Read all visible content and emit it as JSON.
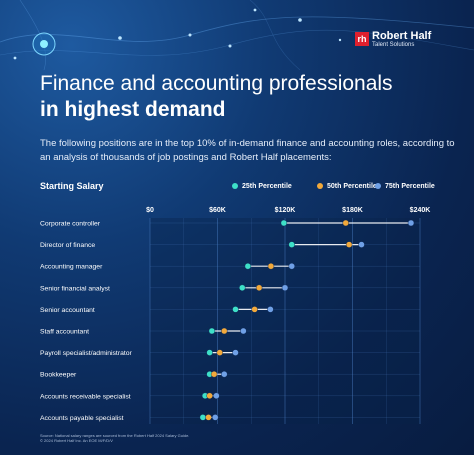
{
  "brand": {
    "logo_mark": "rh",
    "name": "Robert Half",
    "sub": "Talent Solutions",
    "mark_color": "#e0202e"
  },
  "header": {
    "title_line1": "Finance and accounting professionals",
    "title_line2": "in highest demand",
    "subtitle": "The following positions are in the top 10% of in-demand finance and accounting roles, according to an analysis of thousands of job postings and Robert Half placements:"
  },
  "footnote": {
    "line1": "Source: National salary ranges are sourced from the Robert Half 2024 Salary Guide.",
    "line2": "© 2024 Robert Half Inc. An EOE M/F/D/V"
  },
  "chart_data": {
    "type": "scatter",
    "ylabel": "Starting Salary",
    "legend_placement": "top",
    "xlim": [
      0,
      240000
    ],
    "x_ticks": [
      0,
      60000,
      120000,
      180000,
      240000
    ],
    "x_tick_labels": [
      "$0",
      "$60K",
      "$120K",
      "$180K",
      "$240K"
    ],
    "grid": true,
    "categories": [
      "Corporate controller",
      "Director of finance",
      "Accounting manager",
      "Senior financial analyst",
      "Senior accountant",
      "Staff accountant",
      "Payroll specialist/administrator",
      "Bookkeeper",
      "Accounts receivable specialist",
      "Accounts payable specialist"
    ],
    "series": [
      {
        "name": "25th Percentile",
        "color": "#3ee0c8",
        "values": [
          119000,
          126000,
          87000,
          82000,
          76000,
          55000,
          53000,
          53000,
          49000,
          47000
        ]
      },
      {
        "name": "50th Percentile",
        "color": "#f2a93b",
        "values": [
          174000,
          177000,
          107500,
          97000,
          93000,
          66000,
          62000,
          57000,
          53000,
          52000
        ]
      },
      {
        "name": "75th Percentile",
        "color": "#6fa0e6",
        "values": [
          232000,
          188000,
          126000,
          120000,
          107000,
          83000,
          76000,
          66000,
          59000,
          58000
        ]
      }
    ]
  }
}
